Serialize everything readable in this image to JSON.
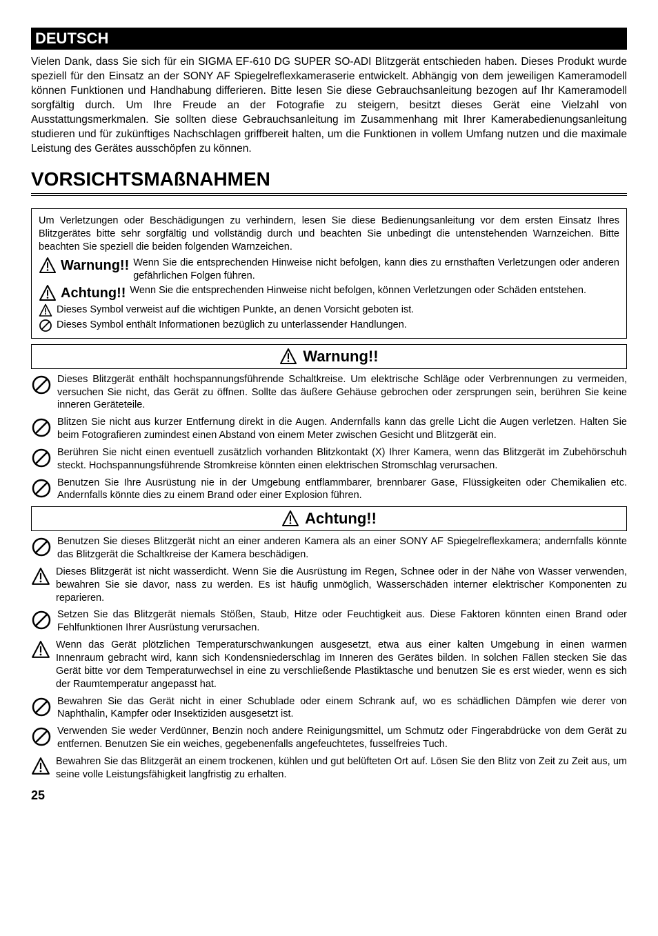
{
  "language_header": "DEUTSCH",
  "intro": "Vielen Dank, dass Sie sich für ein SIGMA EF-610 DG SUPER SO-ADI Blitzgerät entschieden haben. Dieses Produkt wurde speziell für den Einsatz an der SONY AF Spiegelreflexkameraserie entwickelt. Abhängig von dem jeweiligen Kameramodell können Funktionen und Handhabung differieren. Bitte lesen Sie diese Gebrauchsanleitung bezogen auf Ihr Kameramodell sorgfältig durch. Um Ihre Freude an der Fotografie zu steigern, besitzt dieses Gerät eine Vielzahl von Ausstattungsmerkmalen. Sie sollten diese Gebrauchsanleitung im Zusammenhang mit Ihrer Kamerabedienungsanleitung studieren und für zukünftiges Nachschlagen griffbereit halten, um die Funktionen in vollem Umfang nutzen und die maximale Leistung des Gerätes ausschöpfen zu können.",
  "main_heading": "VORSICHTSMAßNAHMEN",
  "box_intro": "Um Verletzungen oder Beschädigungen zu verhindern, lesen Sie diese Bedienungsanleitung vor dem ersten Einsatz Ihres Blitzgerätes bitte sehr sorgfältig und vollständig durch und beachten Sie unbedingt die untenstehenden Warnzeichen. Bitte beachten Sie speziell die beiden folgenden Warnzeichen.",
  "warnung_label": "Warnung!!",
  "warnung_def": "Wenn Sie die entsprechenden Hinweise nicht befolgen, kann dies zu ernsthaften Verletzungen oder anderen gefährlichen Folgen führen.",
  "achtung_label": "Achtung!!",
  "achtung_def": "Wenn Sie die entsprechenden Hinweise nicht befolgen, können Verletzungen oder Schäden entstehen.",
  "symbol_caution": "Dieses Symbol verweist auf die wichtigen Punkte, an denen Vorsicht geboten ist.",
  "symbol_prohibit": "Dieses Symbol enthält Informationen bezüglich zu unterlassender Handlungen.",
  "warnung_heading": "Warnung!!",
  "achtung_heading": "Achtung!!",
  "warnung_items": [
    "Dieses Blitzgerät enthält hochspannungsführende Schaltkreise. Um elektrische Schläge oder Verbrennungen zu vermeiden, versuchen Sie nicht, das Gerät zu öffnen. Sollte das äußere Gehäuse gebrochen oder zersprungen sein, berühren Sie keine inneren Geräteteile.",
    "Blitzen Sie nicht aus kurzer Entfernung direkt in die Augen. Andernfalls kann das grelle Licht die Augen verletzen. Halten Sie beim Fotografieren zumindest einen Abstand von einem Meter zwischen Gesicht und Blitzgerät ein.",
    "Berühren Sie nicht einen eventuell zusätzlich vorhanden Blitzkontakt (X) Ihrer Kamera, wenn das Blitzgerät im Zubehörschuh steckt. Hochspannungsführende Stromkreise könnten einen elektrischen Stromschlag verursachen.",
    "Benutzen Sie Ihre Ausrüstung nie in der Umgebung entflammbarer, brennbarer Gase, Flüssigkeiten oder Chemikalien etc. Andernfalls könnte dies zu einem Brand oder einer Explosion führen."
  ],
  "achtung_items": [
    {
      "icon": "prohibit",
      "text": "Benutzen Sie dieses Blitzgerät nicht an einer anderen Kamera als an einer SONY AF Spiegelreflexkamera; andernfalls könnte das Blitzgerät die Schaltkreise der Kamera beschädigen."
    },
    {
      "icon": "caution",
      "text": "Dieses Blitzgerät ist nicht wasserdicht. Wenn Sie die Ausrüstung im Regen, Schnee oder in der Nähe von Wasser verwenden, bewahren Sie sie davor, nass zu werden. Es ist häufig unmöglich, Wasserschäden interner elektrischer Komponenten zu reparieren."
    },
    {
      "icon": "prohibit",
      "text": "Setzen Sie das Blitzgerät niemals Stößen, Staub, Hitze oder Feuchtigkeit aus. Diese Faktoren könnten einen Brand oder Fehlfunktionen Ihrer Ausrüstung verursachen."
    },
    {
      "icon": "caution",
      "text": "Wenn das Gerät plötzlichen Temperaturschwankungen ausgesetzt, etwa aus einer kalten Umgebung in einen warmen Innenraum gebracht wird, kann sich Kondensniederschlag im Inneren des Gerätes bilden. In solchen Fällen stecken Sie das Gerät bitte vor dem Temperaturwechsel in eine zu verschließende Plastiktasche und benutzen Sie es erst wieder, wenn es sich der Raumtemperatur angepasst hat."
    },
    {
      "icon": "prohibit",
      "text": "Bewahren Sie das Gerät nicht in einer Schublade oder einem Schrank auf, wo es schädlichen Dämpfen wie derer von Naphthalin, Kampfer oder Insektiziden ausgesetzt ist."
    },
    {
      "icon": "prohibit",
      "text": "Verwenden Sie weder Verdünner, Benzin noch andere Reinigungsmittel, um Schmutz oder Fingerabdrücke von dem Gerät zu entfernen. Benutzen Sie ein weiches, gegebenenfalls angefeuchtetes, fusselfreies Tuch."
    },
    {
      "icon": "caution",
      "text": "Bewahren Sie das Blitzgerät an einem trockenen, kühlen und gut belüfteten Ort auf. Lösen Sie den Blitz von Zeit zu Zeit aus, um seine volle Leistungsfähigkeit langfristig zu erhalten."
    }
  ],
  "page_number": "25",
  "icons": {
    "caution_triangle_size": 26,
    "prohibit_circle_size": 30,
    "small_caution_size": 20,
    "small_prohibit_size": 20,
    "heading_icon_size": 26
  },
  "colors": {
    "black": "#000000",
    "white": "#ffffff"
  }
}
